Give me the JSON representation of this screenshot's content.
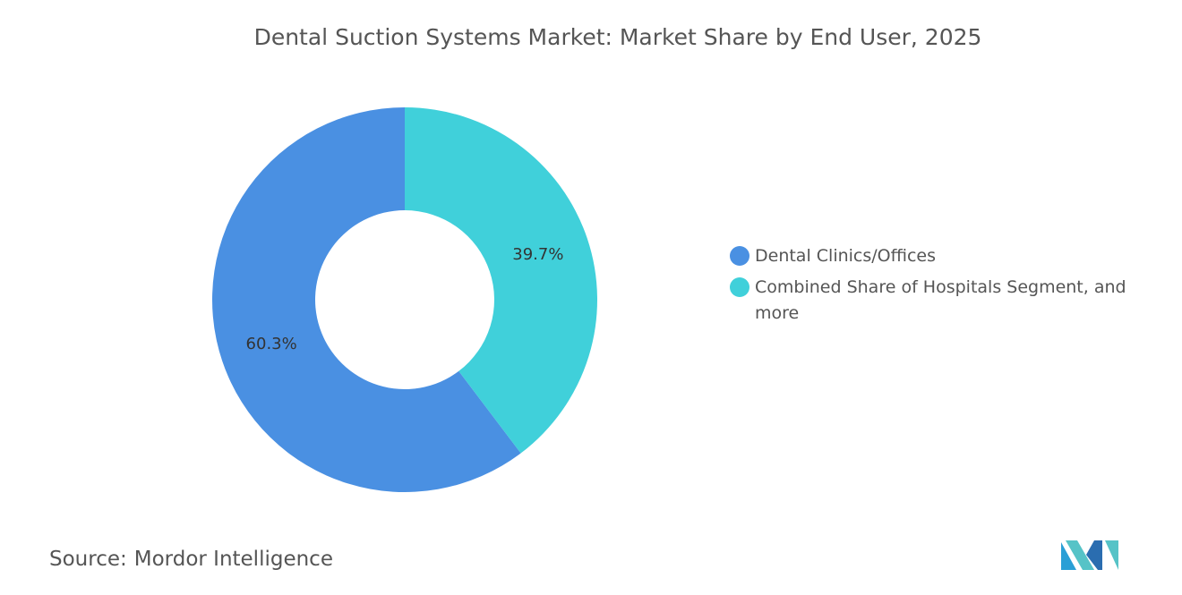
{
  "chart_data": {
    "type": "donut",
    "title": "Dental Suction Systems Market: Market Share by End User, 2025",
    "categories": [
      "Dental Clinics/Offices",
      "Combined Share of Hospitals Segment, and more"
    ],
    "values": [
      60.3,
      39.7
    ],
    "value_labels": [
      "60.3%",
      "39.7%"
    ],
    "colors": [
      "#4a90e2",
      "#40d0da"
    ],
    "legend": "right"
  },
  "footer": {
    "source_label": "Source:",
    "source": "Mordor Intelligence"
  }
}
